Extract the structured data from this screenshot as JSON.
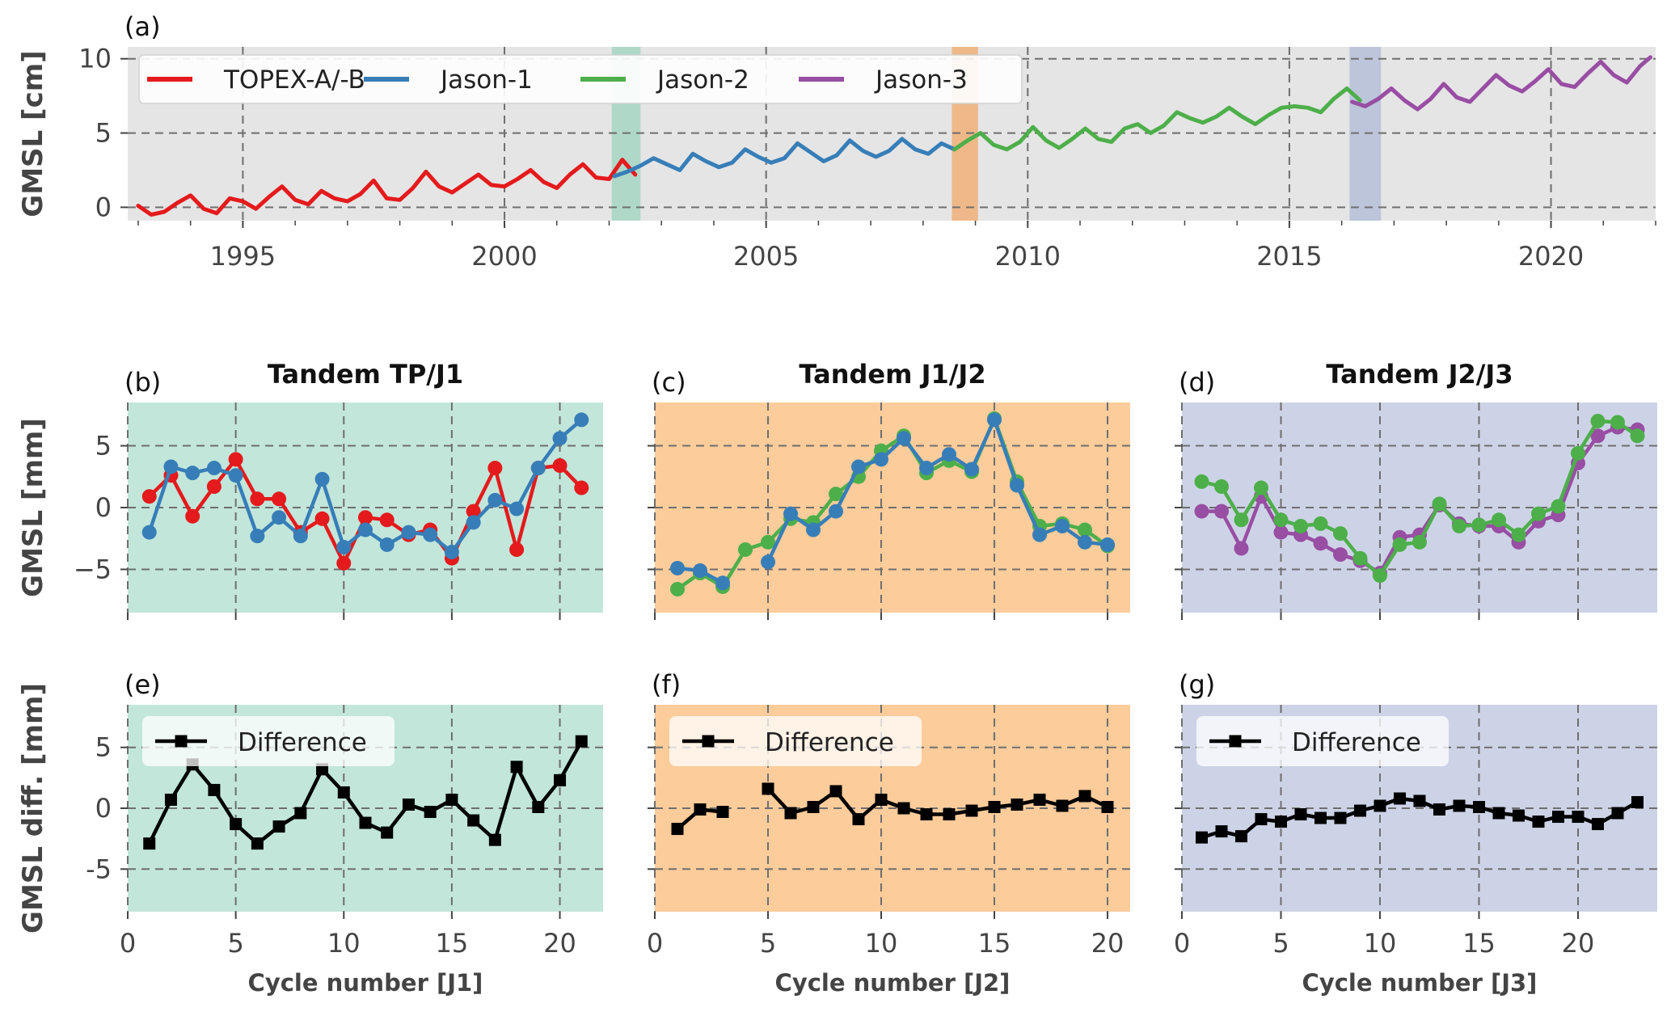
{
  "figure": {
    "colors": {
      "topex": "#e41a1c",
      "jason1": "#377eb8",
      "jason2": "#4daf4a",
      "jason3": "#984ea3",
      "tpj1_bg": "#c2e6da",
      "j1j2_bg": "#fdcc9b",
      "j2j3_bg": "#cdd3e6",
      "band_tpj1": "#a6d6c4",
      "band_j1j2": "#f0b078",
      "band_j2j3": "#b6bfd9",
      "panel_a_bg": "#e5e5e5",
      "grid": "#6e6e6e",
      "difference": "#000000"
    }
  },
  "chart_data": [
    {
      "id": "a",
      "label": "(a)",
      "type": "line",
      "title": "",
      "xlabel": "",
      "ylabel": "GMSL [cm]",
      "xlim": [
        1992.8,
        2022.0
      ],
      "ylim": [
        -0.9,
        10.8
      ],
      "xticks": [
        1995,
        2000,
        2005,
        2010,
        2015,
        2020
      ],
      "yticks": [
        0,
        5,
        10
      ],
      "x_tick_labels": [
        "1995",
        "2000",
        "2005",
        "2010",
        "2015",
        "2020"
      ],
      "y_tick_labels": [
        "0",
        "5",
        "10"
      ],
      "legend": {
        "position": "top-left",
        "entries": [
          "TOPEX-A/-B",
          "Jason-1",
          "Jason-2",
          "Jason-3"
        ]
      },
      "shaded_periods": [
        {
          "name": "Tandem TP/J1",
          "x": [
            2002.05,
            2002.6
          ]
        },
        {
          "name": "Tandem J1/J2",
          "x": [
            2008.55,
            2009.05
          ]
        },
        {
          "name": "Tandem J2/J3",
          "x": [
            2016.15,
            2016.75
          ]
        }
      ],
      "series": [
        {
          "name": "TOPEX-A/-B",
          "x": [
            1993.0,
            1993.25,
            1993.5,
            1993.75,
            1994.0,
            1994.25,
            1994.5,
            1994.75,
            1995.0,
            1995.25,
            1995.5,
            1995.75,
            1996.0,
            1996.25,
            1996.5,
            1996.75,
            1997.0,
            1997.25,
            1997.5,
            1997.75,
            1998.0,
            1998.25,
            1998.5,
            1998.75,
            1999.0,
            1999.25,
            1999.5,
            1999.75,
            2000.0,
            2000.25,
            2000.5,
            2000.75,
            2001.0,
            2001.25,
            2001.5,
            2001.75,
            2002.0,
            2002.25,
            2002.5
          ],
          "values": [
            0.1,
            -0.5,
            -0.3,
            0.3,
            0.8,
            -0.1,
            -0.4,
            0.6,
            0.4,
            -0.1,
            0.7,
            1.4,
            0.5,
            0.2,
            1.1,
            0.6,
            0.4,
            0.9,
            1.8,
            0.6,
            0.5,
            1.3,
            2.4,
            1.4,
            1.0,
            1.6,
            2.2,
            1.5,
            1.4,
            1.9,
            2.5,
            1.7,
            1.3,
            2.2,
            2.9,
            2.0,
            1.9,
            3.2,
            2.2
          ]
        },
        {
          "name": "Jason-1",
          "x": [
            2002.1,
            2002.35,
            2002.6,
            2002.85,
            2003.1,
            2003.35,
            2003.6,
            2003.85,
            2004.1,
            2004.35,
            2004.6,
            2004.85,
            2005.1,
            2005.35,
            2005.6,
            2005.85,
            2006.1,
            2006.35,
            2006.6,
            2006.85,
            2007.1,
            2007.35,
            2007.6,
            2007.85,
            2008.1,
            2008.35,
            2008.6
          ],
          "values": [
            2.1,
            2.4,
            2.8,
            3.3,
            2.9,
            2.5,
            3.6,
            3.1,
            2.7,
            3.0,
            3.9,
            3.4,
            3.0,
            3.3,
            4.3,
            3.7,
            3.1,
            3.5,
            4.5,
            3.8,
            3.4,
            3.8,
            4.6,
            3.9,
            3.6,
            4.3,
            3.9
          ]
        },
        {
          "name": "Jason-2",
          "x": [
            2008.6,
            2008.85,
            2009.1,
            2009.35,
            2009.6,
            2009.85,
            2010.1,
            2010.35,
            2010.6,
            2010.85,
            2011.1,
            2011.35,
            2011.6,
            2011.85,
            2012.1,
            2012.35,
            2012.6,
            2012.85,
            2013.1,
            2013.35,
            2013.6,
            2013.85,
            2014.1,
            2014.35,
            2014.6,
            2014.85,
            2015.1,
            2015.35,
            2015.6,
            2015.85,
            2016.1,
            2016.35
          ],
          "values": [
            3.9,
            4.5,
            5.0,
            4.2,
            3.9,
            4.4,
            5.4,
            4.5,
            4.0,
            4.6,
            5.3,
            4.6,
            4.4,
            5.3,
            5.6,
            5.0,
            5.5,
            6.4,
            6.0,
            5.7,
            6.1,
            6.7,
            6.1,
            5.6,
            6.2,
            6.7,
            6.8,
            6.7,
            6.4,
            7.3,
            8.0,
            7.2
          ]
        },
        {
          "name": "Jason-3",
          "x": [
            2016.2,
            2016.45,
            2016.7,
            2016.95,
            2017.2,
            2017.45,
            2017.7,
            2017.95,
            2018.2,
            2018.45,
            2018.7,
            2018.95,
            2019.2,
            2019.45,
            2019.7,
            2019.95,
            2020.2,
            2020.45,
            2020.7,
            2020.95,
            2021.2,
            2021.45,
            2021.7,
            2021.9
          ],
          "values": [
            7.1,
            6.8,
            7.3,
            8.0,
            7.2,
            6.6,
            7.3,
            8.3,
            7.4,
            7.1,
            8.0,
            8.9,
            8.2,
            7.8,
            8.5,
            9.3,
            8.3,
            8.1,
            9.0,
            9.8,
            8.9,
            8.4,
            9.5,
            10.1
          ]
        }
      ]
    },
    {
      "id": "b",
      "label": "(b)",
      "type": "line",
      "title": "Tandem TP/J1",
      "xlabel": "",
      "ylabel": "GMSL [mm]",
      "xlim": [
        0,
        22
      ],
      "ylim": [
        -8.5,
        8.5
      ],
      "xticks": [
        0,
        5,
        10,
        15,
        20
      ],
      "yticks": [
        -5,
        0,
        5
      ],
      "x_tick_labels": [],
      "y_tick_labels": [
        "−5",
        "0",
        "5"
      ],
      "background": "tpj1_bg",
      "markers": "circle",
      "series": [
        {
          "name": "TOPEX-A/-B",
          "x": [
            1,
            2,
            3,
            4,
            5,
            6,
            7,
            8,
            9,
            10,
            11,
            12,
            13,
            14,
            15,
            16,
            17,
            18,
            19,
            20,
            21
          ],
          "values": [
            0.9,
            2.6,
            -0.7,
            1.7,
            3.9,
            0.7,
            0.7,
            -2.0,
            -0.9,
            -4.5,
            -0.8,
            -1.0,
            -2.2,
            -1.8,
            -4.1,
            -0.3,
            3.2,
            -3.4,
            3.2,
            3.4,
            1.6
          ]
        },
        {
          "name": "Jason-1",
          "x": [
            1,
            2,
            3,
            4,
            5,
            6,
            7,
            8,
            9,
            10,
            11,
            12,
            13,
            14,
            15,
            16,
            17,
            18,
            19,
            20,
            21
          ],
          "values": [
            -2.0,
            3.3,
            2.8,
            3.2,
            2.6,
            -2.3,
            -0.8,
            -2.3,
            2.3,
            -3.2,
            -1.8,
            -3.0,
            -2.0,
            -2.2,
            -3.6,
            -1.2,
            0.6,
            -0.1,
            3.2,
            5.6,
            7.1
          ]
        }
      ]
    },
    {
      "id": "c",
      "label": "(c)",
      "type": "line",
      "title": "Tandem J1/J2",
      "xlabel": "",
      "ylabel": "",
      "xlim": [
        0,
        21
      ],
      "ylim": [
        -8.5,
        8.5
      ],
      "xticks": [
        0,
        5,
        10,
        15,
        20
      ],
      "yticks": [
        -5,
        0,
        5
      ],
      "x_tick_labels": [],
      "y_tick_labels": [],
      "background": "j1j2_bg",
      "markers": "circle",
      "series": [
        {
          "name": "Jason-2",
          "x": [
            1,
            2,
            3,
            4,
            5,
            6,
            7,
            8,
            9,
            10,
            11,
            12,
            13,
            14,
            15,
            16,
            17,
            18,
            19,
            20
          ],
          "values": [
            -6.6,
            -5.3,
            -6.4,
            -3.4,
            -2.8,
            -0.9,
            -1.2,
            1.1,
            2.5,
            4.6,
            5.8,
            2.8,
            3.8,
            2.9,
            7.2,
            2.1,
            -1.5,
            -1.3,
            -1.8,
            -3.1
          ]
        },
        {
          "name": "Jason-1",
          "x": [
            1,
            2,
            3,
            4,
            5,
            6,
            7,
            8,
            9,
            10,
            11,
            12,
            13,
            14,
            15,
            16,
            17,
            18,
            19,
            20
          ],
          "values": [
            -4.9,
            -5.1,
            -6.1,
            null,
            -4.4,
            -0.5,
            -1.8,
            -0.3,
            3.3,
            3.9,
            5.6,
            3.2,
            4.3,
            3.1,
            7.1,
            1.8,
            -2.2,
            -1.5,
            -2.8,
            -3.0
          ]
        }
      ]
    },
    {
      "id": "d",
      "label": "(d)",
      "type": "line",
      "title": "Tandem J2/J3",
      "xlabel": "",
      "ylabel": "",
      "xlim": [
        0,
        24
      ],
      "ylim": [
        -8.5,
        8.5
      ],
      "xticks": [
        0,
        5,
        10,
        15,
        20
      ],
      "yticks": [
        -5,
        0,
        5
      ],
      "x_tick_labels": [],
      "y_tick_labels": [],
      "background": "j2j3_bg",
      "markers": "circle",
      "series": [
        {
          "name": "Jason-3",
          "x": [
            1,
            2,
            3,
            4,
            5,
            6,
            7,
            8,
            9,
            10,
            11,
            12,
            13,
            14,
            15,
            16,
            17,
            18,
            19,
            20,
            21,
            22,
            23
          ],
          "values": [
            -0.3,
            -0.3,
            -3.3,
            0.9,
            -2.0,
            -2.2,
            -2.9,
            -3.8,
            -4.3,
            -5.3,
            -2.4,
            -2.2,
            0.2,
            -1.3,
            -1.5,
            -1.5,
            -2.8,
            -1.1,
            -0.6,
            3.6,
            5.8,
            6.5,
            6.3
          ]
        },
        {
          "name": "Jason-2",
          "x": [
            1,
            2,
            3,
            4,
            5,
            6,
            7,
            8,
            9,
            10,
            11,
            12,
            13,
            14,
            15,
            16,
            17,
            18,
            19,
            20,
            21,
            22,
            23
          ],
          "values": [
            2.1,
            1.7,
            -1.0,
            1.6,
            -1.0,
            -1.5,
            -1.3,
            -2.1,
            -4.1,
            -5.5,
            -3.0,
            -2.8,
            0.3,
            -1.5,
            -1.4,
            -1.0,
            -2.2,
            -0.5,
            0.1,
            4.4,
            7.0,
            6.9,
            5.8
          ]
        }
      ]
    },
    {
      "id": "e",
      "label": "(e)",
      "type": "line",
      "title": "",
      "xlabel": "Cycle number [J1]",
      "ylabel": "GMSL diff. [mm]",
      "xlim": [
        0,
        22
      ],
      "ylim": [
        -8.5,
        8.5
      ],
      "xticks": [
        0,
        5,
        10,
        15,
        20
      ],
      "yticks": [
        -5,
        0,
        5
      ],
      "x_tick_labels": [
        "0",
        "5",
        "10",
        "15",
        "20"
      ],
      "y_tick_labels": [
        "-5",
        "0",
        "5"
      ],
      "background": "tpj1_bg",
      "markers": "square",
      "legend": {
        "position": "top-left",
        "entries": [
          "Difference"
        ]
      },
      "series": [
        {
          "name": "Difference",
          "x": [
            1,
            2,
            3,
            4,
            5,
            6,
            7,
            8,
            9,
            10,
            11,
            12,
            13,
            14,
            15,
            16,
            17,
            18,
            19,
            20,
            21
          ],
          "values": [
            -2.9,
            0.7,
            3.6,
            1.5,
            -1.3,
            -2.9,
            -1.5,
            -0.4,
            3.2,
            1.3,
            -1.2,
            -2.0,
            0.3,
            -0.3,
            0.7,
            -1.0,
            -2.6,
            3.4,
            0.1,
            2.3,
            5.5
          ]
        }
      ]
    },
    {
      "id": "f",
      "label": "(f)",
      "type": "line",
      "title": "",
      "xlabel": "Cycle number [J2]",
      "ylabel": "",
      "xlim": [
        0,
        21
      ],
      "ylim": [
        -8.5,
        8.5
      ],
      "xticks": [
        0,
        5,
        10,
        15,
        20
      ],
      "yticks": [
        -5,
        0,
        5
      ],
      "x_tick_labels": [
        "0",
        "5",
        "10",
        "15",
        "20"
      ],
      "y_tick_labels": [],
      "background": "j1j2_bg",
      "markers": "square",
      "legend": {
        "position": "top-left",
        "entries": [
          "Difference"
        ]
      },
      "series": [
        {
          "name": "Difference",
          "x": [
            1,
            2,
            3,
            4,
            5,
            6,
            7,
            8,
            9,
            10,
            11,
            12,
            13,
            14,
            15,
            16,
            17,
            18,
            19,
            20
          ],
          "values": [
            -1.7,
            -0.1,
            -0.3,
            null,
            1.6,
            -0.4,
            0.1,
            1.4,
            -0.9,
            0.7,
            0.0,
            -0.5,
            -0.5,
            -0.2,
            0.1,
            0.3,
            0.7,
            0.2,
            1.0,
            0.1
          ]
        }
      ]
    },
    {
      "id": "g",
      "label": "(g)",
      "type": "line",
      "title": "",
      "xlabel": "Cycle number [J3]",
      "ylabel": "",
      "xlim": [
        0,
        24
      ],
      "ylim": [
        -8.5,
        8.5
      ],
      "xticks": [
        0,
        5,
        10,
        15,
        20
      ],
      "yticks": [
        -5,
        0,
        5
      ],
      "x_tick_labels": [
        "0",
        "5",
        "10",
        "15",
        "20"
      ],
      "y_tick_labels": [],
      "background": "j2j3_bg",
      "markers": "square",
      "legend": {
        "position": "top-left",
        "entries": [
          "Difference"
        ]
      },
      "series": [
        {
          "name": "Difference",
          "x": [
            1,
            2,
            3,
            4,
            5,
            6,
            7,
            8,
            9,
            10,
            11,
            12,
            13,
            14,
            15,
            16,
            17,
            18,
            19,
            20,
            21,
            22,
            23
          ],
          "values": [
            -2.4,
            -1.9,
            -2.3,
            -0.9,
            -1.1,
            -0.5,
            -0.8,
            -0.8,
            -0.2,
            0.2,
            0.8,
            0.6,
            -0.1,
            0.2,
            0.1,
            -0.4,
            -0.6,
            -1.1,
            -0.7,
            -0.7,
            -1.3,
            -0.4,
            0.5
          ]
        }
      ]
    }
  ]
}
